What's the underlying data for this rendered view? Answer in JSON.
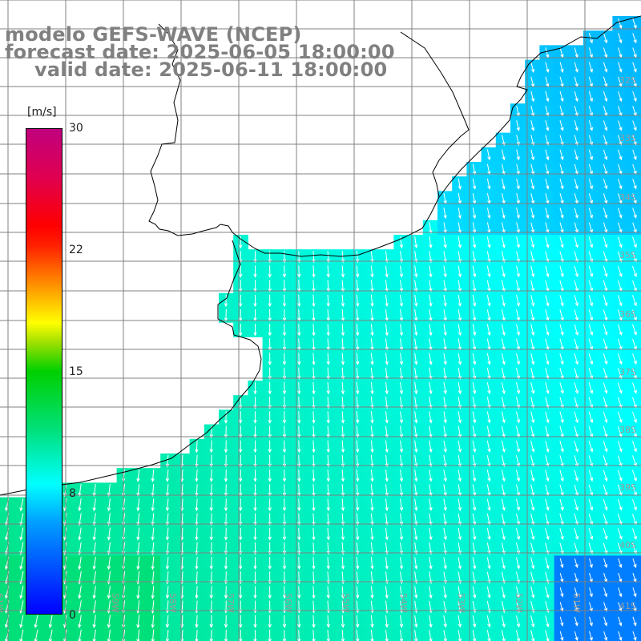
{
  "title": {
    "line1": "modelo GEFS-WAVE (NCEP)",
    "line2": "forecast date: 2025-06-05 18:00:00",
    "line3": "valid date: 2025-06-11 18:00:00"
  },
  "colorbar": {
    "unit": "[m/s]",
    "min": 0,
    "max": 30,
    "tick_labels": [
      "30",
      "22",
      "15",
      "8",
      "0"
    ],
    "tick_values": [
      30,
      22,
      15,
      8,
      0
    ],
    "colors": {
      "v0": "#0000ff",
      "v8": "#00ffff",
      "v15": "#00d000",
      "v18": "#ffff00",
      "v22": "#ff4000",
      "v30": "#c0007e"
    }
  },
  "map": {
    "land_color": "#ffffff",
    "coastline_color": "#000000",
    "grid_color": "#808080",
    "arrow_color": "#ffffff",
    "lat_labels": [
      "32S",
      "33S",
      "34S",
      "35S",
      "36S",
      "37S",
      "38S",
      "39S",
      "40S",
      "41S"
    ],
    "lon_labels": [
      "61W",
      "60W",
      "59W",
      "58W",
      "57W",
      "56W",
      "55W",
      "54W",
      "53W",
      "52W",
      "51W"
    ],
    "lon_range": [
      -61.5,
      -50.5
    ],
    "lat_range": [
      -41.5,
      -31
    ]
  }
}
